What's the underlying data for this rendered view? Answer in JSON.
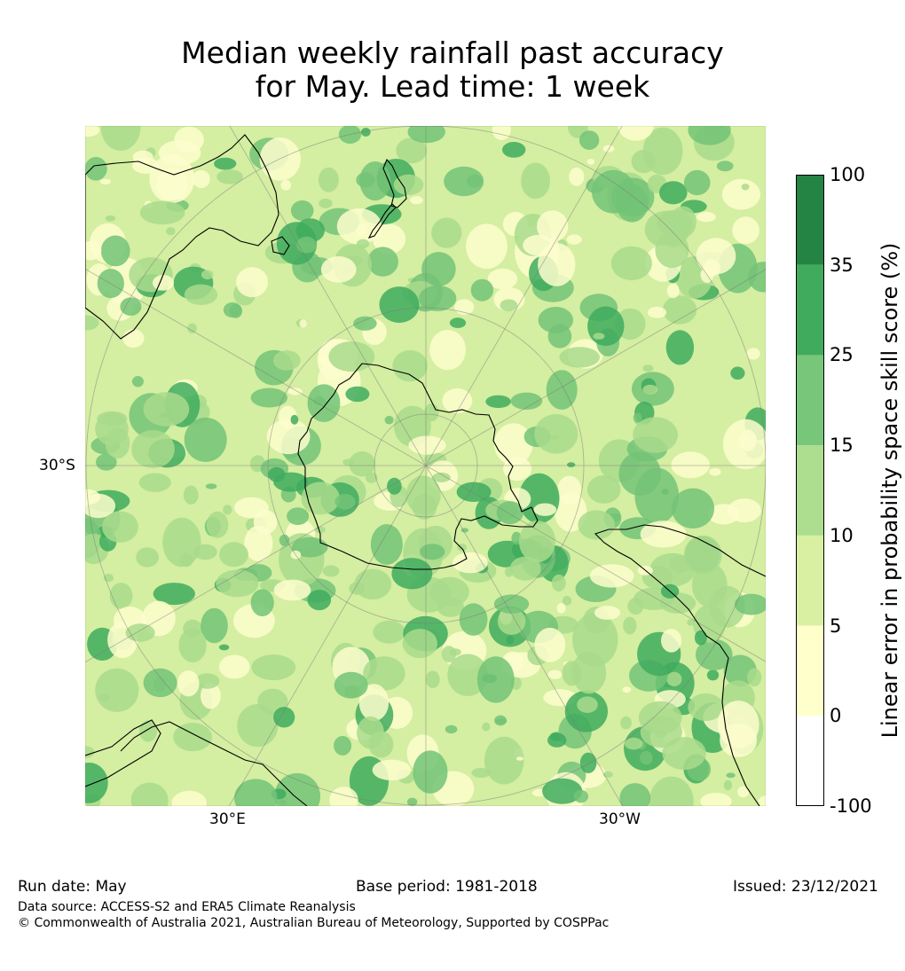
{
  "title": {
    "line1": "Median weekly rainfall past accuracy",
    "line2": "for May. Lead time: 1 week"
  },
  "map": {
    "projection": "south polar stereographic",
    "graticule_labels": {
      "lat_left": "30°S",
      "lon_left": "30°E",
      "lon_right": "30°W"
    },
    "colors": {
      "ocean_base": "#d4eea2",
      "light": "#fdfdcc",
      "mid": "#a9db8c",
      "dark": "#73c377",
      "darker": "#40ab5e",
      "coast": "#000000",
      "grid": "#7a7a7a"
    }
  },
  "colorbar": {
    "label": "Linear error in probability space skill score (%)",
    "ticks": [
      "100",
      "35",
      "25",
      "15",
      "10",
      "5",
      "0",
      "-100"
    ],
    "bins": [
      {
        "from": "-100",
        "to": "0",
        "color": "#ffffff"
      },
      {
        "from": "0",
        "to": "5",
        "color": "#ffffcc"
      },
      {
        "from": "5",
        "to": "10",
        "color": "#d9f0a3"
      },
      {
        "from": "10",
        "to": "15",
        "color": "#addd8e"
      },
      {
        "from": "15",
        "to": "25",
        "color": "#78c679"
      },
      {
        "from": "25",
        "to": "35",
        "color": "#41ab5d"
      },
      {
        "from": "35",
        "to": "100",
        "color": "#238443"
      }
    ]
  },
  "footer": {
    "run_date": "Run date: May",
    "base_period": "Base period: 1981-2018",
    "issued": "Issued: 23/12/2021",
    "data_source": "Data source: ACCESS-S2 and ERA5 Climate Reanalysis",
    "copyright": "© Commonwealth of Australia 2021, Australian Bureau of Meteorology, Supported by COSPPac"
  }
}
